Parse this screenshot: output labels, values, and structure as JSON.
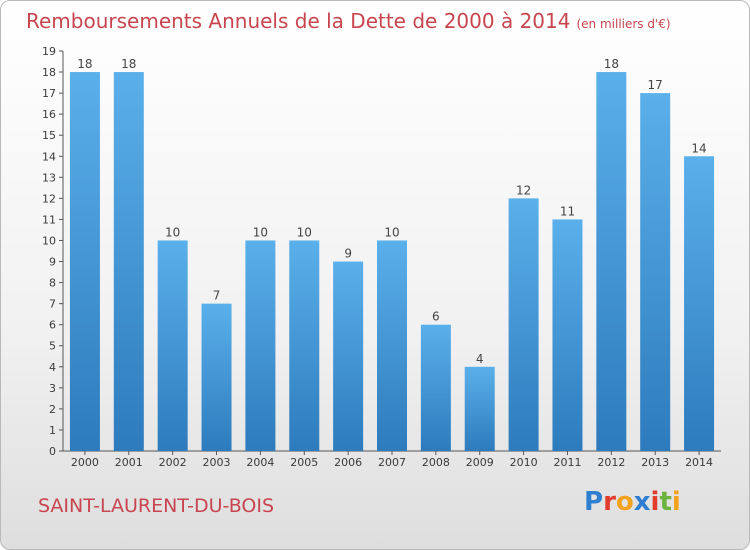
{
  "header": {
    "title": "Remboursements Annuels de la Dette de 2000 à 2014",
    "unit": "(en milliers d'€)"
  },
  "footer": {
    "commune": "SAINT-LAURENT-DU-BOIS",
    "brand_letters": [
      "P",
      "r",
      "o",
      "x",
      "i",
      "t",
      "i"
    ],
    "brand_colors": [
      "#2f7fd1",
      "#e23d2c",
      "#f4a21b",
      "#2f7fd1",
      "#e23d2c",
      "#6db33f",
      "#f4a21b"
    ]
  },
  "colors": {
    "bar_light": "#5ab0ea",
    "bar_dark": "#2d7bbd",
    "title": "#c8454f"
  },
  "chart_data": {
    "type": "bar",
    "categories": [
      "2000",
      "2001",
      "2002",
      "2003",
      "2004",
      "2005",
      "2006",
      "2007",
      "2008",
      "2009",
      "2010",
      "2011",
      "2012",
      "2013",
      "2014"
    ],
    "values": [
      18,
      18,
      10,
      7,
      10,
      10,
      9,
      10,
      6,
      4,
      12,
      11,
      18,
      17,
      14
    ],
    "ylim": [
      0,
      19
    ],
    "yticks": [
      0,
      1,
      2,
      3,
      4,
      5,
      6,
      7,
      8,
      9,
      10,
      11,
      12,
      13,
      14,
      15,
      16,
      17,
      18,
      19
    ],
    "grid": false,
    "legend": "none"
  }
}
